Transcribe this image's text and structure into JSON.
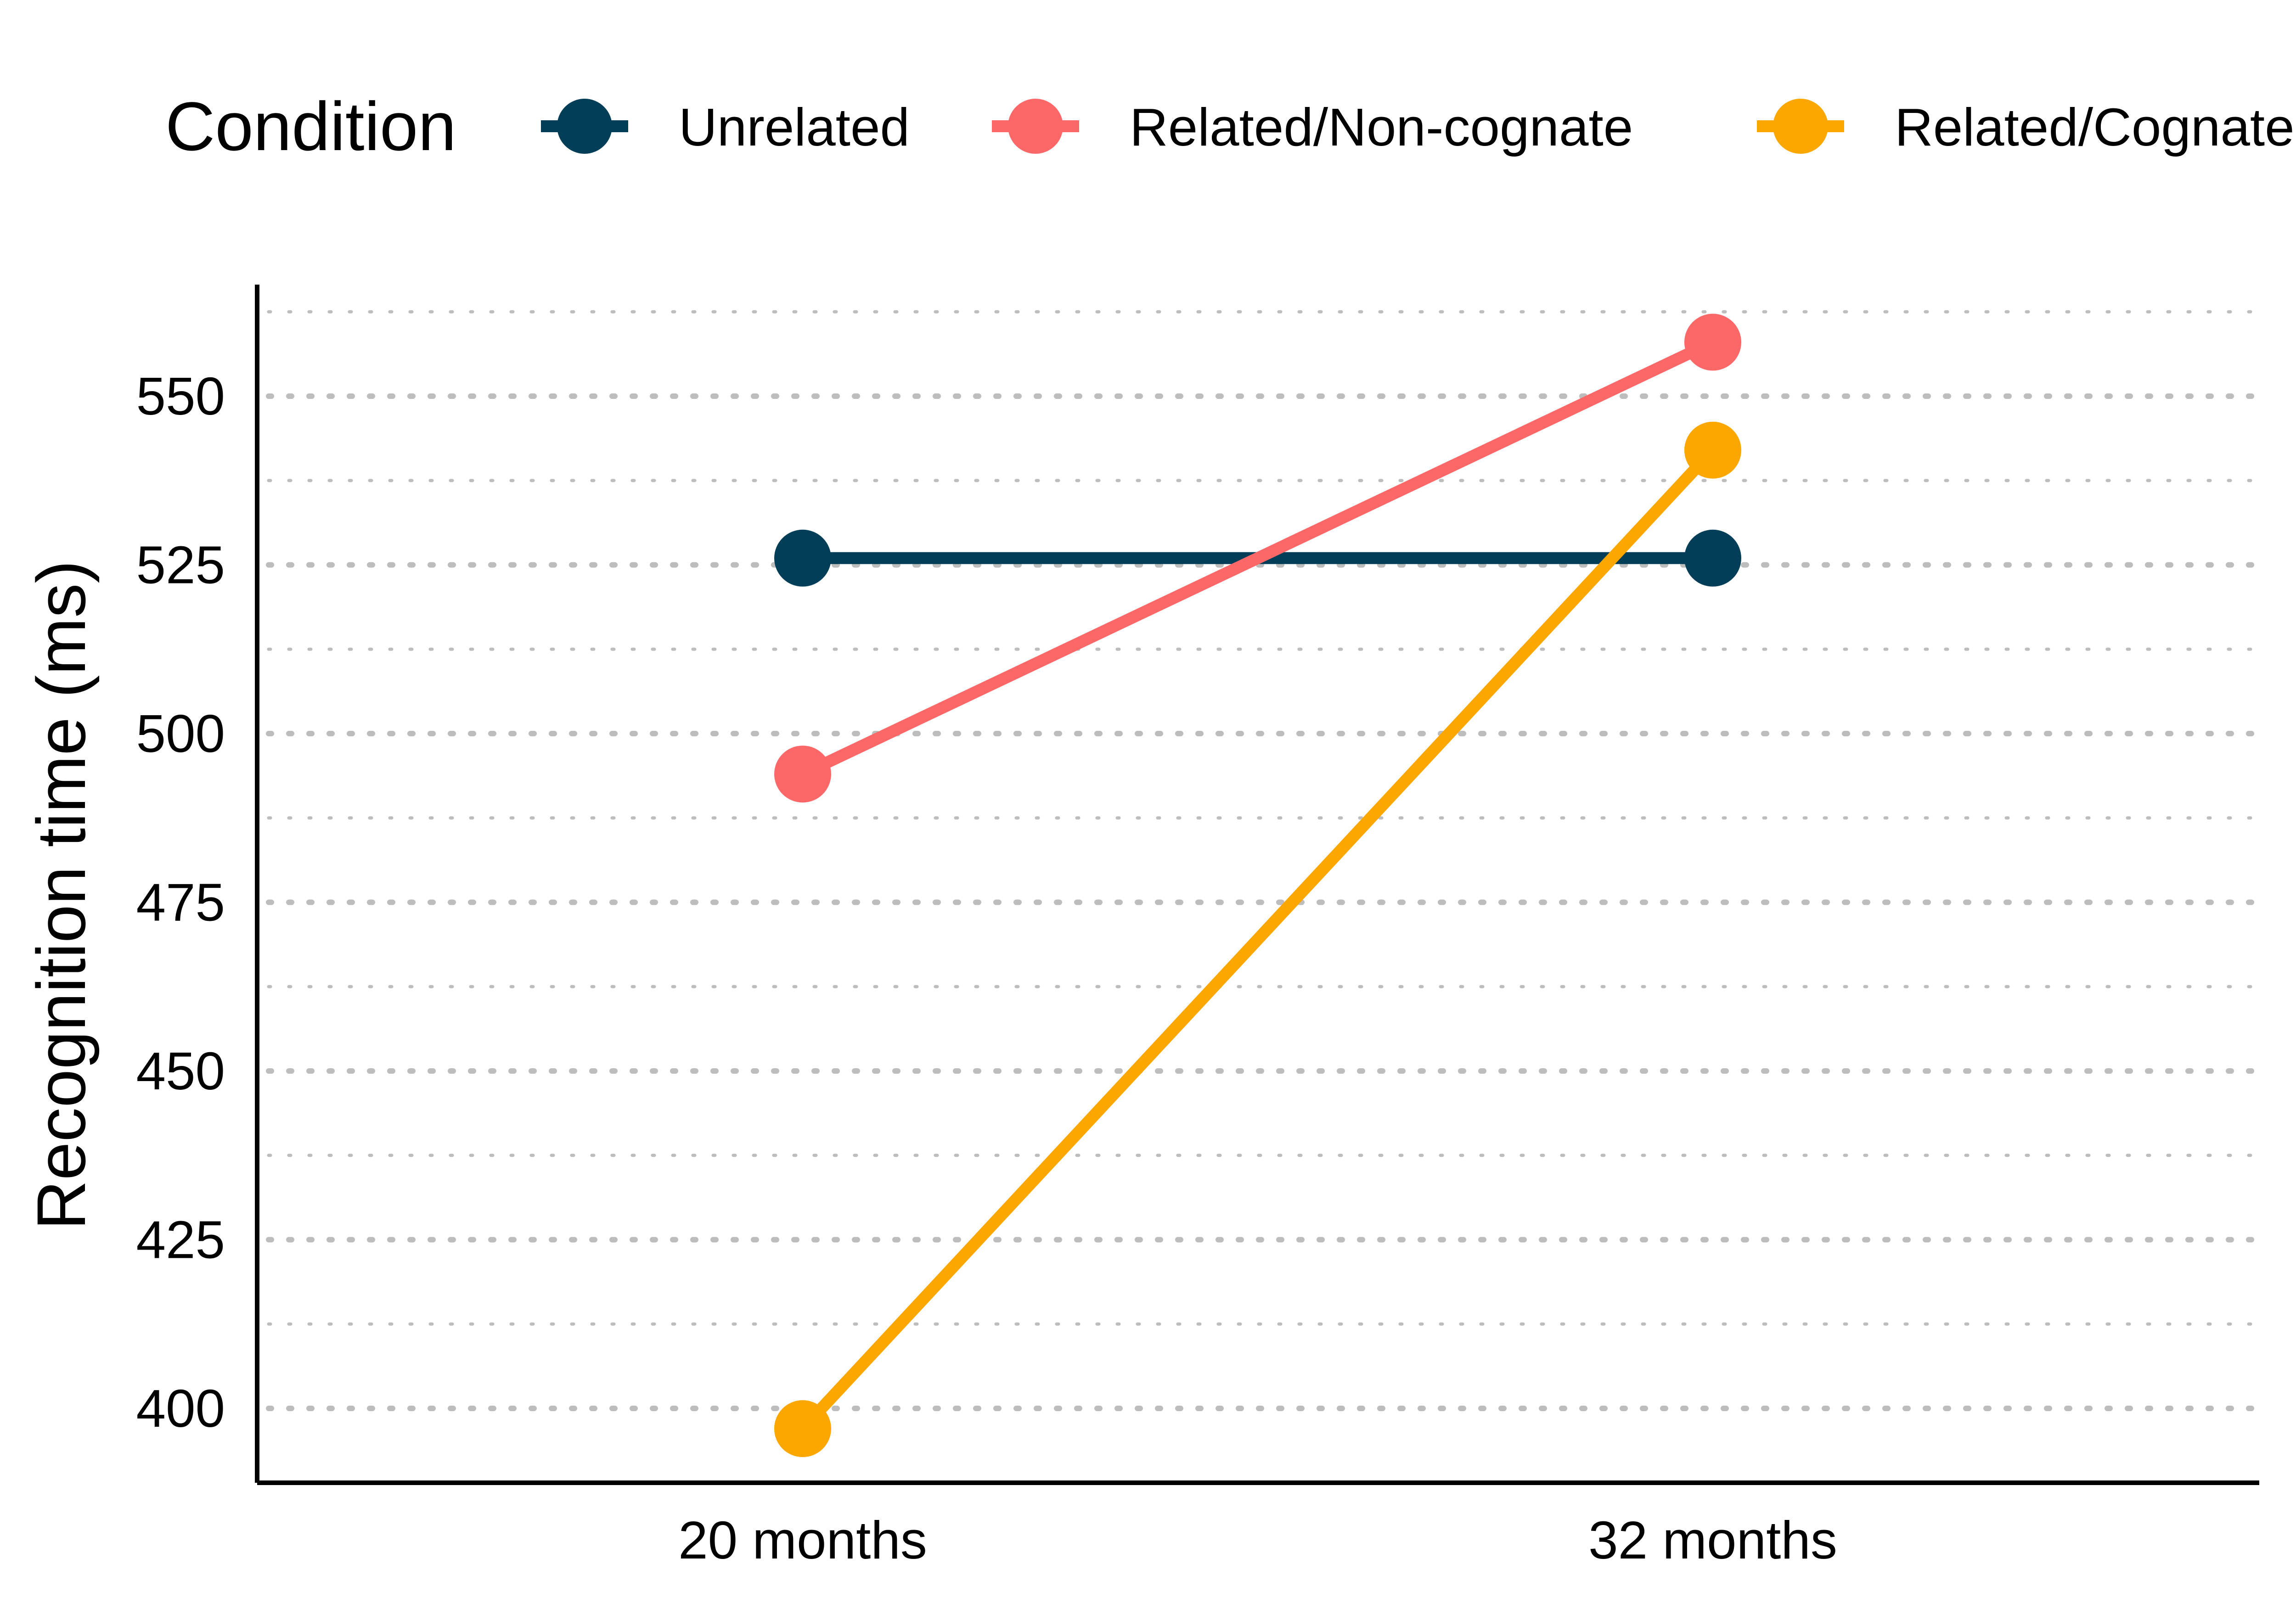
{
  "chart_data": {
    "type": "line",
    "title": "",
    "xlabel": "",
    "ylabel": "Recognition time (ms)",
    "categories": [
      "20 months",
      "32 months"
    ],
    "ylim": [
      390,
      565
    ],
    "yticks": [
      400,
      425,
      450,
      475,
      500,
      525,
      550
    ],
    "grid": true,
    "legend": {
      "title": "Condition",
      "position": "top"
    },
    "series": [
      {
        "name": "Unrelated",
        "color": "#023e58",
        "values": [
          526,
          526
        ]
      },
      {
        "name": "Related/Non-cognate",
        "color": "#fc6767",
        "values": [
          494,
          558
        ]
      },
      {
        "name": "Related/Cognate",
        "color": "#fca600",
        "values": [
          397,
          542
        ]
      }
    ]
  }
}
